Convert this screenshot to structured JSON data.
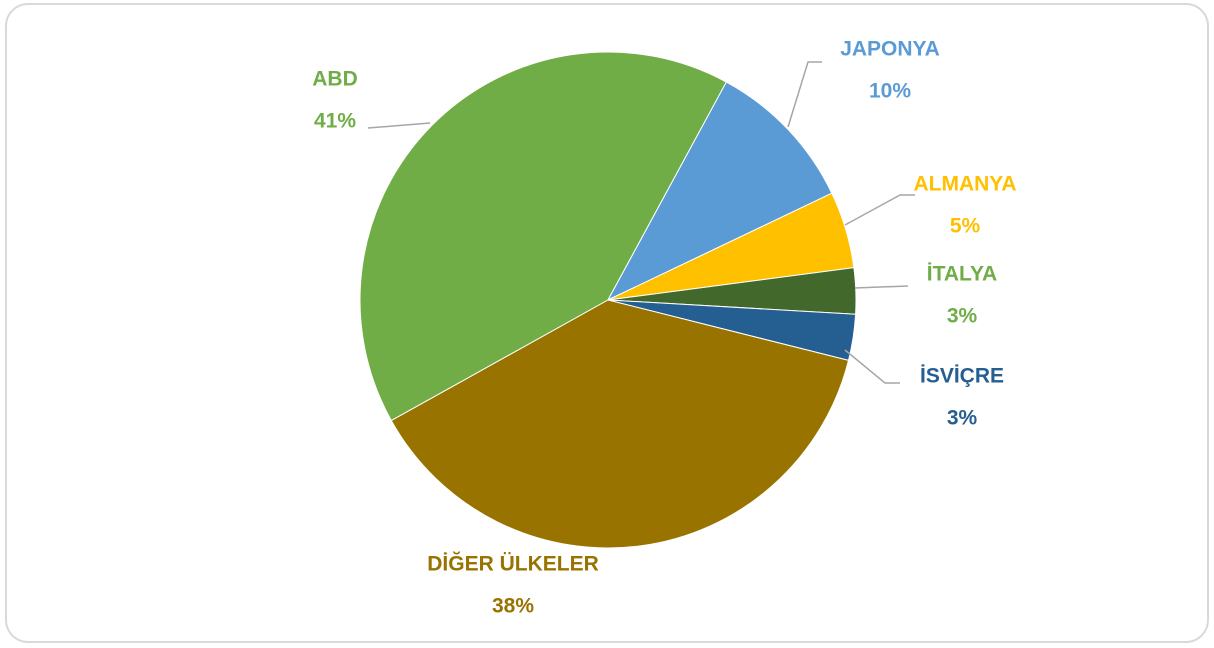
{
  "chart_data": {
    "type": "pie",
    "categories": [
      "ABD",
      "JAPONYA",
      "ALMANYA",
      "İTALYA",
      "İSVİÇRE",
      "DİĞER ÜLKELER"
    ],
    "values": [
      41,
      10,
      5,
      3,
      3,
      38
    ],
    "value_labels": [
      "41%",
      "10%",
      "5%",
      "3%",
      "3%",
      "38%"
    ],
    "colors": [
      "#70ad47",
      "#5b9bd5",
      "#ffc000",
      "#43682b",
      "#255e91",
      "#997300"
    ]
  }
}
